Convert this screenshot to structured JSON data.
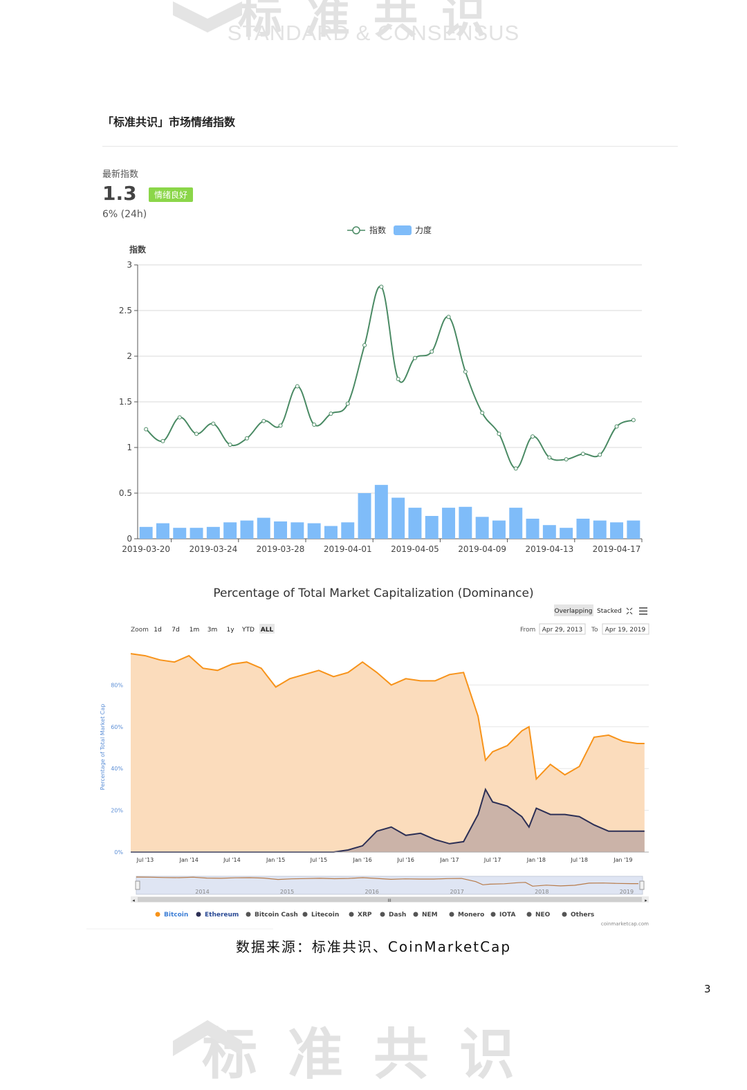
{
  "watermark": {
    "top_cn": "标准共识",
    "top_en": "STANDARD & CONSENSUS",
    "bottom_cn": "标准共识"
  },
  "panel": {
    "title": "「标准共识」市场情绪指数",
    "latest_label": "最新指数",
    "latest_value": "1.3",
    "badge": "情绪良好",
    "change": "6% (24h)"
  },
  "colors": {
    "line": "#4a8a64",
    "bar": "#7fbcf9",
    "badge": "#8bd649",
    "bitcoin": "#f7931a",
    "bitcoin_fill": "#fbdcbc",
    "ethereum": "#2c2f55",
    "ethereum_fill": "#cbb3a8"
  },
  "chart_data": [
    {
      "type": "line",
      "title": "",
      "ylabel": "指数",
      "legend": [
        "指数",
        "力度"
      ],
      "legend_placement": "top-center",
      "ylim": [
        0,
        3
      ],
      "yticks": [
        "0",
        "0.5",
        "1",
        "1.5",
        "2",
        "2.5",
        "3"
      ],
      "xticks": [
        "2019-03-20",
        "2019-03-24",
        "2019-03-28",
        "2019-04-01",
        "2019-04-05",
        "2019-04-09",
        "2019-04-13",
        "2019-04-17"
      ],
      "categories": [
        "2019-03-20",
        "2019-03-21",
        "2019-03-22",
        "2019-03-23",
        "2019-03-24",
        "2019-03-25",
        "2019-03-26",
        "2019-03-27",
        "2019-03-28",
        "2019-03-29",
        "2019-03-30",
        "2019-03-31",
        "2019-04-01",
        "2019-04-02",
        "2019-04-03",
        "2019-04-04",
        "2019-04-05",
        "2019-04-06",
        "2019-04-07",
        "2019-04-08",
        "2019-04-09",
        "2019-04-10",
        "2019-04-11",
        "2019-04-12",
        "2019-04-13",
        "2019-04-14",
        "2019-04-15",
        "2019-04-16",
        "2019-04-17",
        "2019-04-18"
      ],
      "series": [
        {
          "name": "指数",
          "type": "line",
          "values": [
            1.2,
            1.07,
            1.33,
            1.15,
            1.26,
            1.03,
            1.1,
            1.29,
            1.24,
            1.67,
            1.25,
            1.37,
            1.48,
            2.12,
            2.76,
            1.75,
            1.98,
            2.05,
            2.43,
            1.83,
            1.38,
            1.15,
            0.77,
            1.12,
            0.89,
            0.87,
            0.93,
            0.92,
            1.23,
            1.3
          ]
        },
        {
          "name": "力度",
          "type": "bar",
          "values": [
            0.13,
            0.17,
            0.12,
            0.12,
            0.13,
            0.18,
            0.2,
            0.23,
            0.19,
            0.18,
            0.17,
            0.14,
            0.18,
            0.5,
            0.59,
            0.45,
            0.34,
            0.25,
            0.34,
            0.35,
            0.24,
            0.2,
            0.34,
            0.22,
            0.15,
            0.12,
            0.22,
            0.2,
            0.18,
            0.2
          ]
        }
      ],
      "grid": true
    },
    {
      "type": "area",
      "title": "Percentage of Total Market Capitalization (Dominance)",
      "ylabel": "Percentage of Total Market Cap",
      "ylim": [
        0,
        100
      ],
      "yticks": [
        "0%",
        "20%",
        "40%",
        "60%",
        "80%"
      ],
      "xticks": [
        "Jul '13",
        "Jan '14",
        "Jul '14",
        "Jan '15",
        "Jul '15",
        "Jan '16",
        "Jul '16",
        "Jan '17",
        "Jul '17",
        "Jan '18",
        "Jul '18",
        "Jan '19"
      ],
      "controls": {
        "overlapping": "Overlapping",
        "stacked": "Stacked",
        "zoom_label": "Zoom",
        "zoom_options": [
          "1d",
          "7d",
          "1m",
          "3m",
          "1y",
          "YTD",
          "ALL"
        ],
        "zoom_selected": "ALL",
        "from_label": "From",
        "from_value": "Apr 29, 2013",
        "to_label": "To",
        "to_value": "Apr 19, 2019"
      },
      "navigator_labels": [
        "2014",
        "2015",
        "2016",
        "2017",
        "2018",
        "2019"
      ],
      "legend": [
        "Bitcoin",
        "Ethereum",
        "Bitcoin Cash",
        "Litecoin",
        "XRP",
        "Dash",
        "NEM",
        "Monero",
        "IOTA",
        "NEO",
        "Others"
      ],
      "legend_placement": "bottom",
      "credit": "coinmarketcap.com",
      "x": [
        "2013-05",
        "2013-07",
        "2013-09",
        "2013-11",
        "2014-01",
        "2014-03",
        "2014-05",
        "2014-07",
        "2014-09",
        "2014-11",
        "2015-01",
        "2015-03",
        "2015-05",
        "2015-07",
        "2015-09",
        "2015-11",
        "2016-01",
        "2016-03",
        "2016-05",
        "2016-07",
        "2016-09",
        "2016-11",
        "2017-01",
        "2017-03",
        "2017-05",
        "2017-06",
        "2017-07",
        "2017-09",
        "2017-11",
        "2017-12",
        "2018-01",
        "2018-03",
        "2018-05",
        "2018-07",
        "2018-09",
        "2018-11",
        "2019-01",
        "2019-03",
        "2019-04"
      ],
      "series": [
        {
          "name": "Bitcoin",
          "values": [
            95,
            94,
            92,
            91,
            94,
            88,
            87,
            90,
            91,
            88,
            79,
            83,
            85,
            87,
            84,
            86,
            91,
            86,
            80,
            83,
            82,
            82,
            85,
            86,
            65,
            44,
            48,
            51,
            58,
            60,
            35,
            42,
            37,
            41,
            55,
            56,
            53,
            52,
            52
          ]
        },
        {
          "name": "Ethereum",
          "values": [
            0,
            0,
            0,
            0,
            0,
            0,
            0,
            0,
            0,
            0,
            0,
            0,
            0,
            0,
            0,
            1,
            3,
            10,
            12,
            8,
            9,
            6,
            4,
            5,
            18,
            30,
            24,
            22,
            17,
            12,
            21,
            18,
            18,
            17,
            13,
            10,
            10,
            10,
            10
          ]
        }
      ],
      "grid": true
    }
  ],
  "footer": {
    "source": "数据来源：标准共识、CoinMarketCap",
    "page_number": "3"
  }
}
